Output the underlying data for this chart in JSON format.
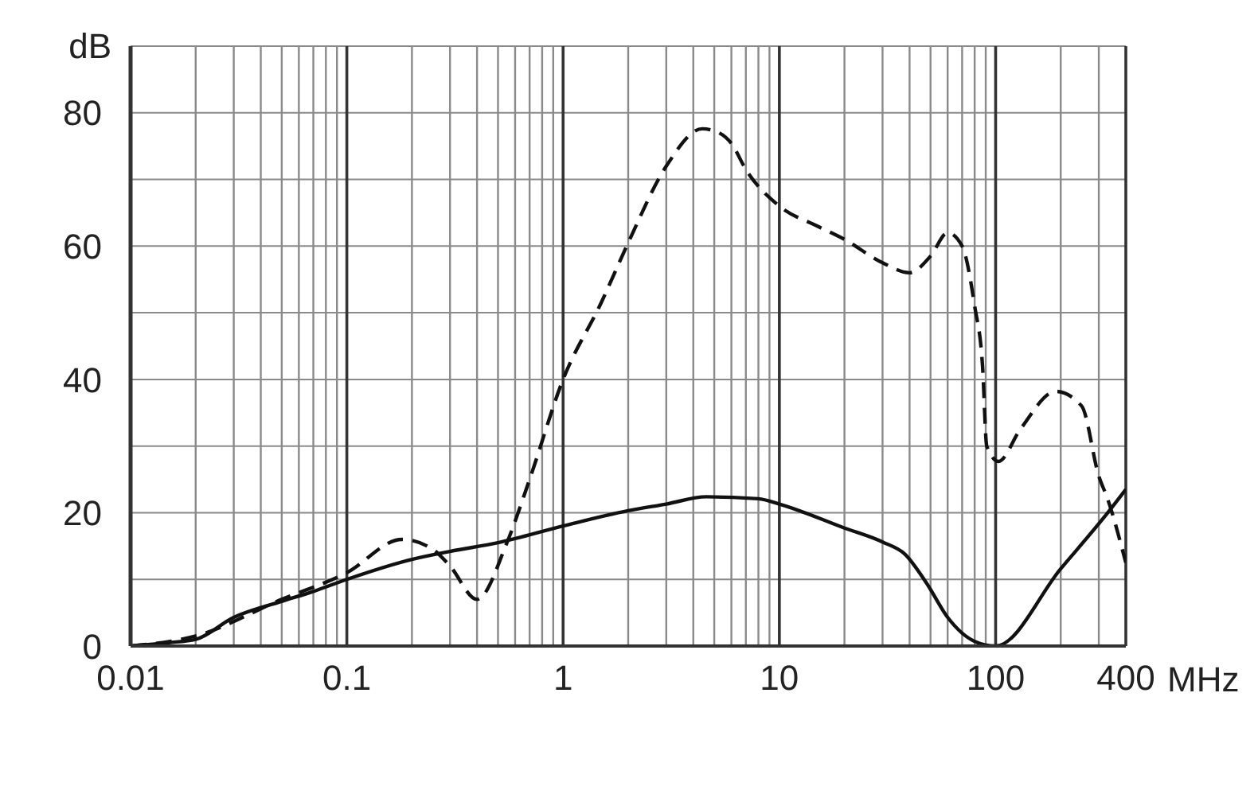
{
  "chart_data": {
    "type": "line",
    "xlabel": "MHz",
    "ylabel": "dB",
    "log": "x",
    "grid": true,
    "xlim": [
      0.01,
      400
    ],
    "xticks": [
      0.01,
      {
        "value": 0.02,
        "label": null
      },
      {
        "value": 0.03,
        "label": null
      },
      {
        "value": 0.04,
        "label": null
      },
      {
        "value": 0.05,
        "label": null
      },
      {
        "value": 0.06,
        "label": null
      },
      {
        "value": 0.07,
        "label": null
      },
      {
        "value": 0.08,
        "label": null
      },
      {
        "value": 0.09,
        "label": null
      },
      0.1,
      {
        "value": 0.2,
        "label": null
      },
      {
        "value": 0.3,
        "label": null
      },
      {
        "value": 0.4,
        "label": null
      },
      {
        "value": 0.5,
        "label": null
      },
      {
        "value": 0.6,
        "label": null
      },
      {
        "value": 0.7,
        "label": null
      },
      {
        "value": 0.8,
        "label": null
      },
      {
        "value": 0.9,
        "label": null
      },
      1,
      {
        "value": 2,
        "label": null
      },
      {
        "value": 3,
        "label": null
      },
      {
        "value": 4,
        "label": null
      },
      {
        "value": 5,
        "label": null
      },
      {
        "value": 6,
        "label": null
      },
      {
        "value": 7,
        "label": null
      },
      {
        "value": 8,
        "label": null
      },
      {
        "value": 9,
        "label": null
      },
      10,
      {
        "value": 20,
        "label": null
      },
      {
        "value": 30,
        "label": null
      },
      {
        "value": 40,
        "label": null
      },
      {
        "value": 50,
        "label": null
      },
      {
        "value": 60,
        "label": null
      },
      {
        "value": 70,
        "label": null
      },
      {
        "value": 80,
        "label": null
      },
      {
        "value": 90,
        "label": null
      },
      100,
      {
        "value": 200,
        "label": null
      },
      {
        "value": 300,
        "label": null
      },
      400
    ],
    "ylim": [
      0,
      90
    ],
    "yticks": [
      0,
      {
        "value": 10,
        "label": null
      },
      20,
      {
        "value": 30,
        "label": null
      },
      40,
      {
        "value": 50,
        "label": null
      },
      60,
      {
        "value": 70,
        "label": null
      },
      80,
      {
        "value": 90,
        "label": null
      }
    ],
    "series": [
      {
        "color": "#111111",
        "line_style": "solid",
        "x": [
          0.01,
          0.015,
          0.02,
          0.03,
          0.05,
          0.07,
          0.1,
          0.2,
          0.3,
          0.5,
          1,
          2,
          3,
          4.6,
          8,
          10,
          20,
          30,
          38,
          48,
          60,
          80,
          100,
          200,
          330,
          400
        ],
        "values": [
          0,
          0.5,
          1,
          4.3,
          6.7,
          8.2,
          10,
          13,
          14.2,
          15.5,
          18,
          20.3,
          21.3,
          22.4,
          22.1,
          21.3,
          17.7,
          15.6,
          13.8,
          9.4,
          4.3,
          0.7,
          0,
          11.6,
          20,
          23.5
        ]
      },
      {
        "color": "#111111",
        "line_style": "dashed",
        "x": [
          0.01,
          0.02,
          0.05,
          0.1,
          0.18,
          0.25,
          0.3,
          0.4,
          0.55,
          0.7,
          1,
          1.5,
          2,
          3,
          4.4,
          5,
          6,
          7,
          10,
          15,
          20,
          30,
          40,
          50,
          60,
          70,
          80,
          87,
          91,
          103,
          130,
          190,
          250,
          300,
          330,
          400
        ],
        "values": [
          0,
          1.5,
          7,
          11,
          16,
          14.5,
          12,
          7,
          15.5,
          25,
          40,
          51.5,
          60.5,
          72,
          77.6,
          77.3,
          75.4,
          71.5,
          66,
          63,
          61,
          57.5,
          56,
          58.5,
          62,
          60,
          51,
          42,
          30,
          27.7,
          32.5,
          38.2,
          36,
          25.5,
          22,
          12.5
        ]
      }
    ]
  }
}
